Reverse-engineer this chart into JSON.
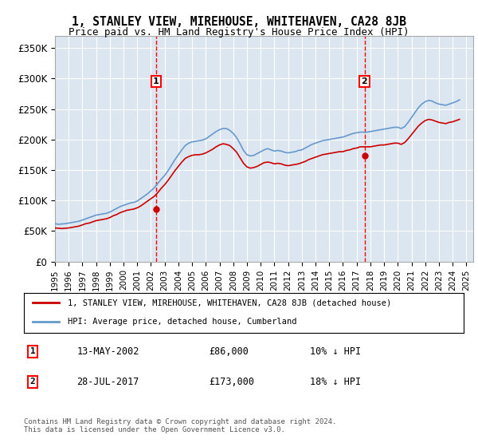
{
  "title": "1, STANLEY VIEW, MIREHOUSE, WHITEHAVEN, CA28 8JB",
  "subtitle": "Price paid vs. HM Land Registry's House Price Index (HPI)",
  "ylabel_ticks": [
    "£0",
    "£50K",
    "£100K",
    "£150K",
    "£200K",
    "£250K",
    "£300K",
    "£350K"
  ],
  "ylim": [
    0,
    370000
  ],
  "yticks": [
    0,
    50000,
    100000,
    150000,
    200000,
    250000,
    300000,
    350000
  ],
  "xlim_start": 1995.0,
  "xlim_end": 2025.5,
  "background_color": "#dce6f0",
  "plot_bg": "#dce6f0",
  "red_line_color": "#cc0000",
  "blue_line_color": "#6699cc",
  "purchase1_date": 2002.37,
  "purchase1_price": 86000,
  "purchase2_date": 2017.57,
  "purchase2_price": 173000,
  "legend_line1": "1, STANLEY VIEW, MIREHOUSE, WHITEHAVEN, CA28 8JB (detached house)",
  "legend_line2": "HPI: Average price, detached house, Cumberland",
  "table_row1_label": "1",
  "table_row1_date": "13-MAY-2002",
  "table_row1_price": "£86,000",
  "table_row1_hpi": "10% ↓ HPI",
  "table_row2_label": "2",
  "table_row2_date": "28-JUL-2017",
  "table_row2_price": "£173,000",
  "table_row2_hpi": "18% ↓ HPI",
  "footer": "Contains HM Land Registry data © Crown copyright and database right 2024.\nThis data is licensed under the Open Government Licence v3.0.",
  "hpi_data": {
    "years": [
      1995.0,
      1995.25,
      1995.5,
      1995.75,
      1996.0,
      1996.25,
      1996.5,
      1996.75,
      1997.0,
      1997.25,
      1997.5,
      1997.75,
      1998.0,
      1998.25,
      1998.5,
      1998.75,
      1999.0,
      1999.25,
      1999.5,
      1999.75,
      2000.0,
      2000.25,
      2000.5,
      2000.75,
      2001.0,
      2001.25,
      2001.5,
      2001.75,
      2002.0,
      2002.25,
      2002.5,
      2002.75,
      2003.0,
      2003.25,
      2003.5,
      2003.75,
      2004.0,
      2004.25,
      2004.5,
      2004.75,
      2005.0,
      2005.25,
      2005.5,
      2005.75,
      2006.0,
      2006.25,
      2006.5,
      2006.75,
      2007.0,
      2007.25,
      2007.5,
      2007.75,
      2008.0,
      2008.25,
      2008.5,
      2008.75,
      2009.0,
      2009.25,
      2009.5,
      2009.75,
      2010.0,
      2010.25,
      2010.5,
      2010.75,
      2011.0,
      2011.25,
      2011.5,
      2011.75,
      2012.0,
      2012.25,
      2012.5,
      2012.75,
      2013.0,
      2013.25,
      2013.5,
      2013.75,
      2014.0,
      2014.25,
      2014.5,
      2014.75,
      2015.0,
      2015.25,
      2015.5,
      2015.75,
      2016.0,
      2016.25,
      2016.5,
      2016.75,
      2017.0,
      2017.25,
      2017.5,
      2017.75,
      2018.0,
      2018.25,
      2018.5,
      2018.75,
      2019.0,
      2019.25,
      2019.5,
      2019.75,
      2020.0,
      2020.25,
      2020.5,
      2020.75,
      2021.0,
      2021.25,
      2021.5,
      2021.75,
      2022.0,
      2022.25,
      2022.5,
      2022.75,
      2023.0,
      2023.25,
      2023.5,
      2023.75,
      2024.0,
      2024.25,
      2024.5
    ],
    "values": [
      62000,
      61000,
      61500,
      62000,
      63000,
      64000,
      65000,
      66000,
      68000,
      70000,
      72000,
      74000,
      76000,
      77000,
      78000,
      79000,
      81000,
      84000,
      87000,
      90000,
      92000,
      94000,
      96000,
      97000,
      99000,
      103000,
      107000,
      111000,
      116000,
      121000,
      128000,
      135000,
      141000,
      149000,
      158000,
      167000,
      175000,
      183000,
      190000,
      194000,
      196000,
      197000,
      198000,
      199000,
      201000,
      205000,
      209000,
      213000,
      216000,
      218000,
      218000,
      215000,
      210000,
      203000,
      193000,
      182000,
      175000,
      173000,
      174000,
      177000,
      180000,
      183000,
      185000,
      183000,
      181000,
      182000,
      181000,
      179000,
      178000,
      179000,
      180000,
      182000,
      183000,
      186000,
      189000,
      192000,
      194000,
      196000,
      198000,
      199000,
      200000,
      201000,
      202000,
      203000,
      204000,
      206000,
      208000,
      210000,
      211000,
      212000,
      212000,
      212000,
      213000,
      214000,
      215000,
      216000,
      217000,
      218000,
      219000,
      220000,
      220000,
      218000,
      221000,
      228000,
      236000,
      244000,
      252000,
      258000,
      262000,
      264000,
      263000,
      260000,
      258000,
      257000,
      256000,
      258000,
      260000,
      262000,
      265000
    ]
  },
  "price_data": {
    "years": [
      1995.0,
      1995.25,
      1995.5,
      1995.75,
      1996.0,
      1996.25,
      1996.5,
      1996.75,
      1997.0,
      1997.25,
      1997.5,
      1997.75,
      1998.0,
      1998.25,
      1998.5,
      1998.75,
      1999.0,
      1999.25,
      1999.5,
      1999.75,
      2000.0,
      2000.25,
      2000.5,
      2000.75,
      2001.0,
      2001.25,
      2001.5,
      2001.75,
      2002.0,
      2002.25,
      2002.5,
      2002.75,
      2003.0,
      2003.25,
      2003.5,
      2003.75,
      2004.0,
      2004.25,
      2004.5,
      2004.75,
      2005.0,
      2005.25,
      2005.5,
      2005.75,
      2006.0,
      2006.25,
      2006.5,
      2006.75,
      2007.0,
      2007.25,
      2007.5,
      2007.75,
      2008.0,
      2008.25,
      2008.5,
      2008.75,
      2009.0,
      2009.25,
      2009.5,
      2009.75,
      2010.0,
      2010.25,
      2010.5,
      2010.75,
      2011.0,
      2011.25,
      2011.5,
      2011.75,
      2012.0,
      2012.25,
      2012.5,
      2012.75,
      2013.0,
      2013.25,
      2013.5,
      2013.75,
      2014.0,
      2014.25,
      2014.5,
      2014.75,
      2015.0,
      2015.25,
      2015.5,
      2015.75,
      2016.0,
      2016.25,
      2016.5,
      2016.75,
      2017.0,
      2017.25,
      2017.5,
      2017.75,
      2018.0,
      2018.25,
      2018.5,
      2018.75,
      2019.0,
      2019.25,
      2019.5,
      2019.75,
      2020.0,
      2020.25,
      2020.5,
      2020.75,
      2021.0,
      2021.25,
      2021.5,
      2021.75,
      2022.0,
      2022.25,
      2022.5,
      2022.75,
      2023.0,
      2023.25,
      2023.5,
      2023.75,
      2024.0,
      2024.25,
      2024.5
    ],
    "values": [
      55000,
      54500,
      54000,
      54500,
      55000,
      56000,
      57000,
      58000,
      60000,
      62000,
      63000,
      65000,
      67000,
      68000,
      69000,
      70000,
      72000,
      75000,
      77000,
      80000,
      82000,
      84000,
      85000,
      86000,
      88000,
      91000,
      95000,
      99000,
      103000,
      107000,
      113000,
      120000,
      126000,
      133000,
      141000,
      149000,
      156000,
      163000,
      169000,
      172000,
      174000,
      175000,
      175000,
      176000,
      178000,
      181000,
      184000,
      188000,
      191000,
      193000,
      192000,
      190000,
      185000,
      179000,
      170000,
      161000,
      155000,
      153000,
      154000,
      156000,
      159000,
      162000,
      163000,
      162000,
      160000,
      161000,
      160000,
      158000,
      157000,
      158000,
      159000,
      160000,
      162000,
      164000,
      167000,
      169000,
      171000,
      173000,
      175000,
      176000,
      177000,
      178000,
      179000,
      180000,
      180000,
      182000,
      183000,
      185000,
      186000,
      188000,
      188000,
      188000,
      188000,
      189000,
      190000,
      191000,
      191000,
      192000,
      193000,
      194000,
      194000,
      192000,
      195000,
      201000,
      208000,
      215000,
      222000,
      227000,
      231000,
      233000,
      232000,
      230000,
      228000,
      227000,
      226000,
      228000,
      229000,
      231000,
      233000
    ]
  }
}
